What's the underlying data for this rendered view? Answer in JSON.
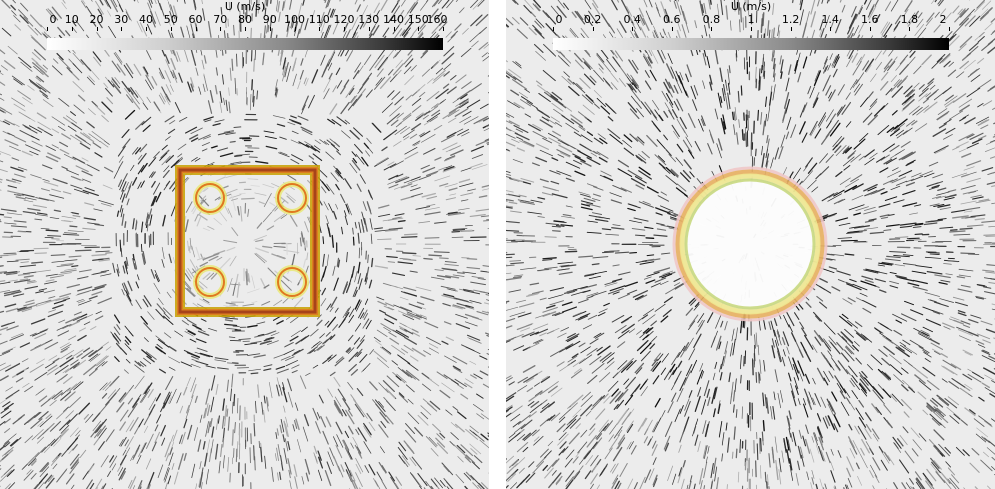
{
  "panels": [
    {
      "id": "left",
      "colorbar": {
        "title": "U (m/s)",
        "ticks": [
          "0",
          "10",
          "20",
          "30",
          "40",
          "50",
          "60",
          "70",
          "80",
          "90",
          "100",
          "110",
          "120",
          "130",
          "140",
          "150",
          "160"
        ],
        "range": [
          0,
          160
        ]
      },
      "structure_shape": "square",
      "ring_colors": [
        "#c8a000",
        "#e07820",
        "#9e3a1a",
        "#e8e870"
      ]
    },
    {
      "id": "right",
      "colorbar": {
        "title": "U (m/s)",
        "ticks": [
          "0",
          "0.2",
          "0.4",
          "0.6",
          "0.8",
          "1",
          "1.2",
          "1.4",
          "1.6",
          "1.8",
          "2"
        ],
        "range": [
          0,
          2
        ]
      },
      "structure_shape": "circle",
      "ring_colors": [
        "#f0c8c8",
        "#e8b060",
        "#f0e890",
        "#c8d880"
      ]
    }
  ]
}
